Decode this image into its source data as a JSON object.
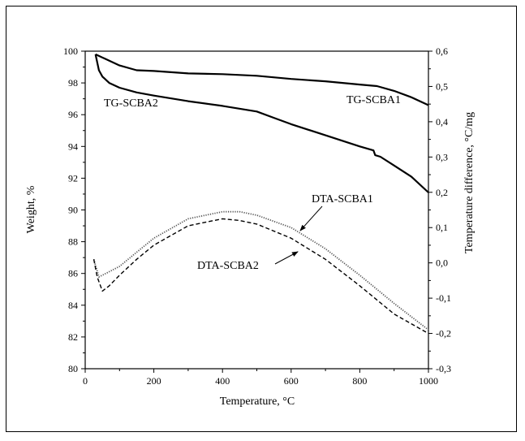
{
  "chart_data": {
    "type": "line",
    "xlabel": "Temperature, °C",
    "ylabel_left": "Weight, %",
    "ylabel_right": "Temperature difference, °C/mg",
    "xlim": [
      0,
      1000
    ],
    "ylim_left": [
      80,
      100
    ],
    "ylim_right": [
      -0.3,
      0.6
    ],
    "x_ticks": [
      "0",
      "200",
      "400",
      "600",
      "800",
      "1000"
    ],
    "y_left_ticks": [
      "80",
      "82",
      "84",
      "86",
      "88",
      "90",
      "92",
      "94",
      "96",
      "98",
      "100"
    ],
    "y_right_ticks": [
      "-0,3",
      "-0,2",
      "-0,1",
      "0,0",
      "0,1",
      "0,2",
      "0,3",
      "0,4",
      "0,5",
      "0,6"
    ],
    "grid": false,
    "series": [
      {
        "name": "TG-SCBA1",
        "axis": "left",
        "style": "solid",
        "x": [
          30,
          60,
          100,
          150,
          200,
          300,
          400,
          500,
          600,
          700,
          800,
          850,
          900,
          950,
          1000
        ],
        "y": [
          99.8,
          99.5,
          99.1,
          98.8,
          98.75,
          98.6,
          98.55,
          98.45,
          98.25,
          98.1,
          97.9,
          97.8,
          97.5,
          97.1,
          96.6
        ]
      },
      {
        "name": "TG-SCBA2",
        "axis": "left",
        "style": "solid",
        "x": [
          30,
          40,
          50,
          70,
          100,
          150,
          200,
          300,
          400,
          500,
          550,
          600,
          700,
          800,
          840,
          845,
          860,
          900,
          950,
          1000
        ],
        "y": [
          99.8,
          98.8,
          98.4,
          98.0,
          97.7,
          97.4,
          97.2,
          96.85,
          96.55,
          96.2,
          95.8,
          95.4,
          94.7,
          94.0,
          93.75,
          93.45,
          93.35,
          92.8,
          92.1,
          91.1
        ]
      },
      {
        "name": "DTA-SCBA1",
        "axis": "right",
        "style": "dotted",
        "x": [
          25,
          40,
          60,
          100,
          150,
          200,
          300,
          400,
          450,
          500,
          600,
          700,
          800,
          900,
          1000
        ],
        "y": [
          0.01,
          -0.04,
          -0.03,
          -0.01,
          0.03,
          0.07,
          0.125,
          0.145,
          0.145,
          0.135,
          0.1,
          0.04,
          -0.035,
          -0.115,
          -0.19
        ]
      },
      {
        "name": "DTA-SCBA2",
        "axis": "right",
        "style": "dashed",
        "x": [
          25,
          35,
          50,
          70,
          100,
          150,
          200,
          300,
          400,
          450,
          500,
          600,
          700,
          800,
          900,
          1000
        ],
        "y": [
          0.01,
          -0.04,
          -0.08,
          -0.065,
          -0.035,
          0.01,
          0.05,
          0.105,
          0.125,
          0.12,
          0.11,
          0.07,
          0.01,
          -0.065,
          -0.145,
          -0.2
        ]
      }
    ],
    "annotations": [
      {
        "text": "TG-SCBA2",
        "target": "TG-SCBA2"
      },
      {
        "text": "TG-SCBA1",
        "target": "TG-SCBA1"
      },
      {
        "text": "DTA-SCBA1",
        "target": "DTA-SCBA1",
        "arrow": true
      },
      {
        "text": "DTA-SCBA2",
        "target": "DTA-SCBA2",
        "arrow": true
      }
    ]
  }
}
